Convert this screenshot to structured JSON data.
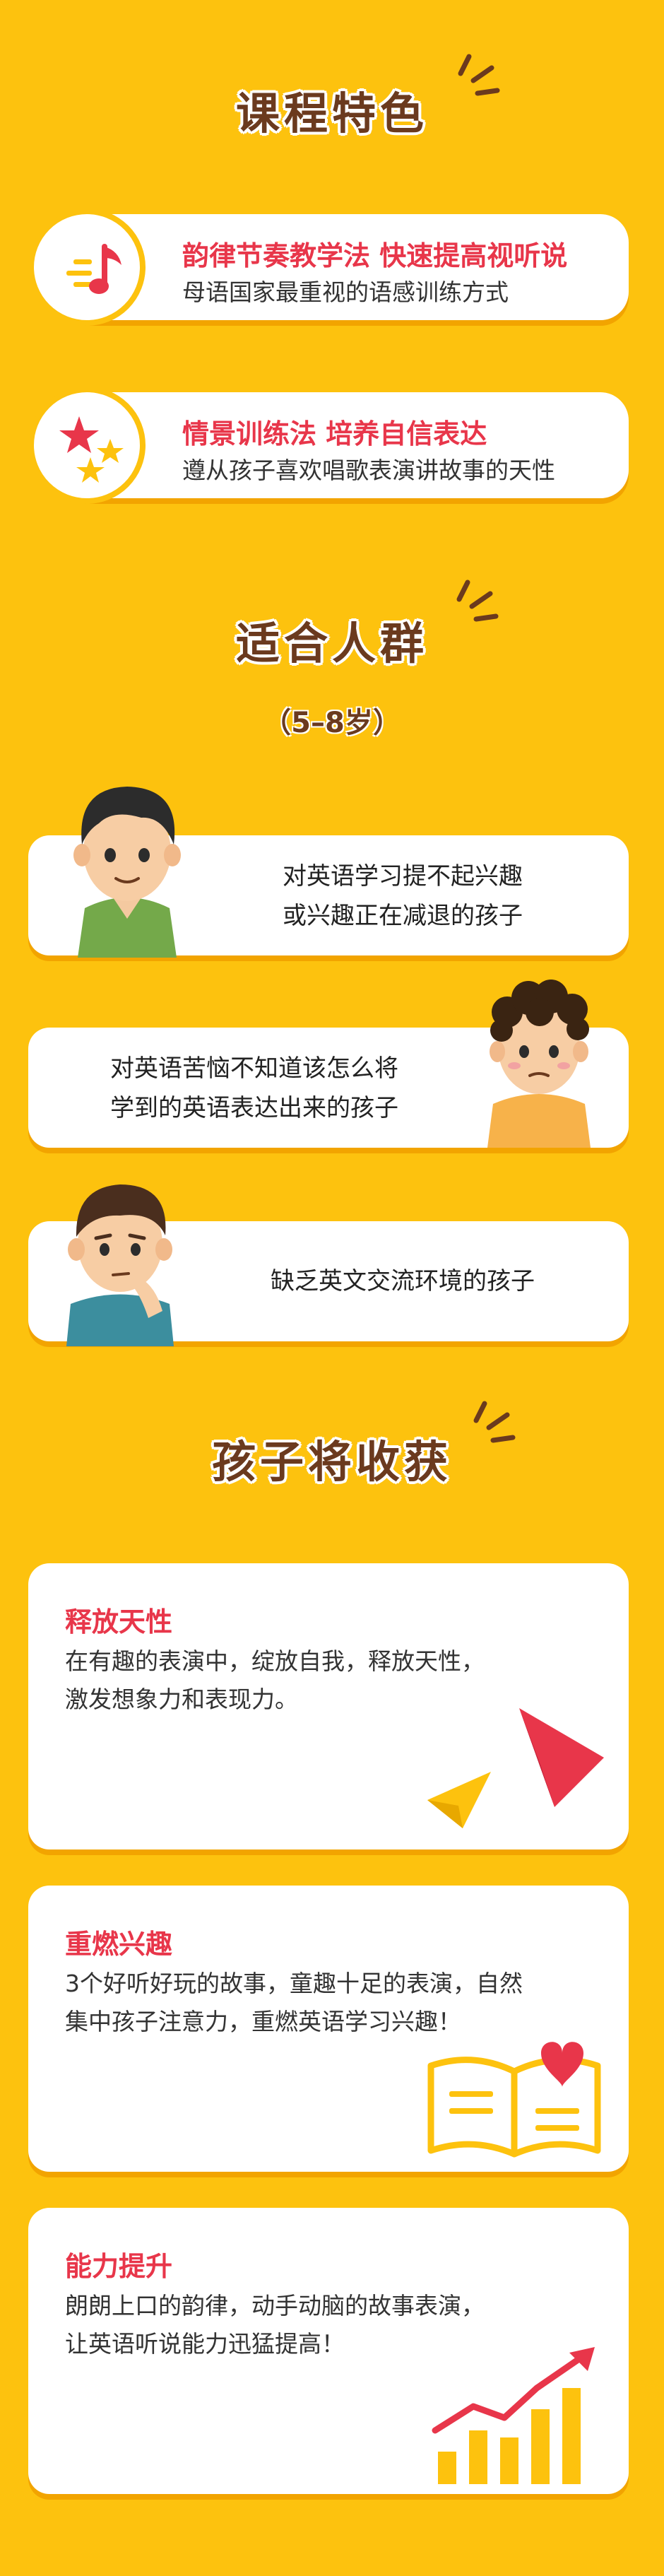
{
  "sections": {
    "features_title": "课程特色",
    "audience_title": "适合人群",
    "audience_age": "（5–8岁）",
    "gains_title": "孩子将收获"
  },
  "features": [
    {
      "title": "韵律节奏教学法 快速提高视听说",
      "desc": "母语国家最重视的语感训练方式",
      "icon": "music-note-icon"
    },
    {
      "title": "情景训练法 培养自信表达",
      "desc": "遵从孩子喜欢唱歌表演讲故事的天性",
      "icon": "stars-icon"
    }
  ],
  "audience": [
    {
      "line1": "对英语学习提不起兴趣",
      "line2": "或兴趣正在减退的孩子"
    },
    {
      "line1": "对英语苦恼不知道该怎么将",
      "line2": "学到的英语表达出来的孩子"
    },
    {
      "line1": "缺乏英文交流环境的孩子",
      "line2": ""
    }
  ],
  "gains": [
    {
      "title": "释放天性",
      "line1": "在有趣的表演中，绽放自我，释放天性，",
      "line2": "激发想象力和表现力。",
      "icon": "paper-plane-icon"
    },
    {
      "title": "重燃兴趣",
      "line1": "3个好听好玩的故事，童趣十足的表演，自然",
      "line2": "集中孩子注意力，重燃英语学习兴趣！",
      "icon": "book-heart-icon"
    },
    {
      "title": "能力提升",
      "line1": "朗朗上口的韵律，动手动脑的故事表演，",
      "line2": "让英语听说能力迅猛提高！",
      "icon": "growth-chart-icon"
    }
  ],
  "colors": {
    "background": "#FDC20E",
    "title": "#6B3A1E",
    "accent": "#E8364A",
    "shadow": "#F2A400"
  }
}
